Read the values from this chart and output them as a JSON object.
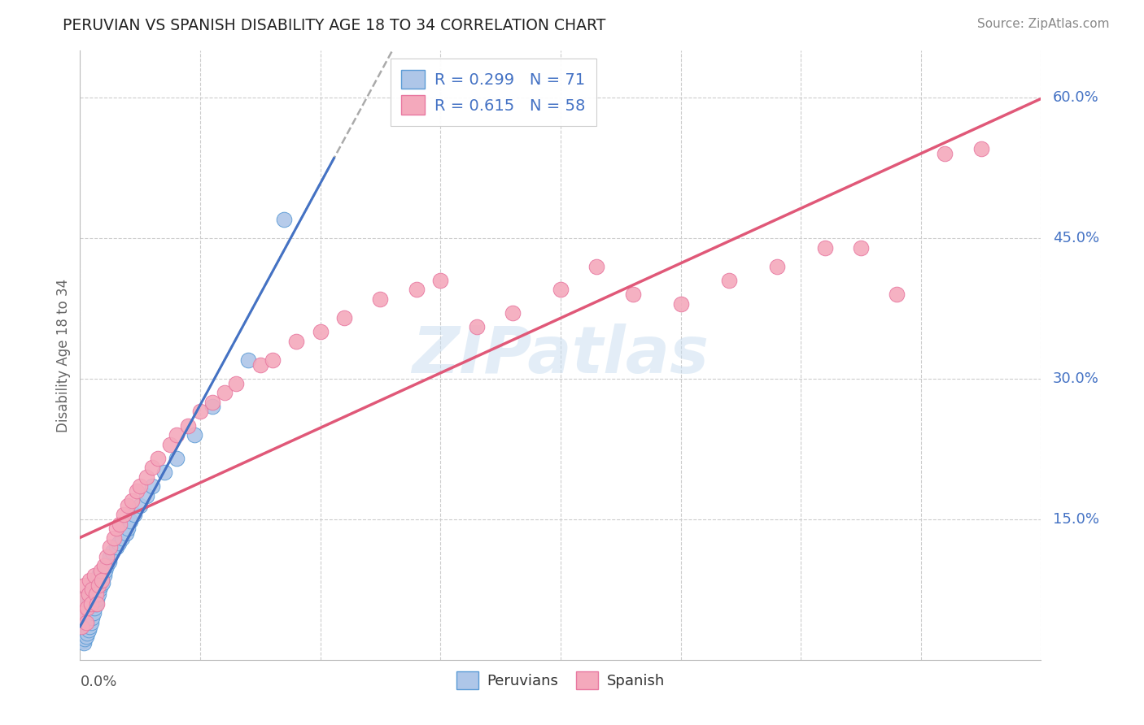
{
  "title": "PERUVIAN VS SPANISH DISABILITY AGE 18 TO 34 CORRELATION CHART",
  "source": "Source: ZipAtlas.com",
  "ylabel": "Disability Age 18 to 34",
  "xlim": [
    0.0,
    0.8
  ],
  "ylim": [
    0.0,
    0.65
  ],
  "peruvian_R": 0.299,
  "peruvian_N": 71,
  "spanish_R": 0.615,
  "spanish_N": 58,
  "peruvian_color": "#aec6e8",
  "spanish_color": "#f4a9bc",
  "peruvian_edge": "#5b9bd5",
  "spanish_edge": "#e878a0",
  "trend_peruvian_color": "#aaaaaa",
  "trend_spanish_color": "#e05878",
  "trend_peruvian_solid_color": "#4472c4",
  "legend_R_color": "#4472c4",
  "watermark": "ZIPatlas",
  "grid_color": "#cccccc",
  "right_label_color": "#4472c4",
  "ylabel_right_labels": [
    "60.0%",
    "45.0%",
    "30.0%",
    "15.0%"
  ],
  "ylabel_right_positions": [
    0.6,
    0.45,
    0.3,
    0.15
  ],
  "peruvian_x": [
    0.001,
    0.001,
    0.002,
    0.002,
    0.002,
    0.003,
    0.003,
    0.003,
    0.003,
    0.004,
    0.004,
    0.004,
    0.004,
    0.005,
    0.005,
    0.005,
    0.005,
    0.006,
    0.006,
    0.006,
    0.006,
    0.007,
    0.007,
    0.007,
    0.007,
    0.008,
    0.008,
    0.008,
    0.009,
    0.009,
    0.009,
    0.01,
    0.01,
    0.01,
    0.011,
    0.011,
    0.011,
    0.012,
    0.012,
    0.013,
    0.013,
    0.014,
    0.014,
    0.015,
    0.015,
    0.016,
    0.017,
    0.018,
    0.019,
    0.02,
    0.021,
    0.022,
    0.024,
    0.025,
    0.027,
    0.03,
    0.032,
    0.035,
    0.038,
    0.04,
    0.042,
    0.045,
    0.05,
    0.055,
    0.06,
    0.07,
    0.08,
    0.095,
    0.11,
    0.14,
    0.17
  ],
  "peruvian_y": [
    0.025,
    0.035,
    0.02,
    0.03,
    0.045,
    0.018,
    0.028,
    0.038,
    0.05,
    0.022,
    0.032,
    0.042,
    0.055,
    0.025,
    0.035,
    0.048,
    0.06,
    0.028,
    0.038,
    0.05,
    0.065,
    0.032,
    0.042,
    0.055,
    0.07,
    0.035,
    0.048,
    0.062,
    0.04,
    0.055,
    0.07,
    0.045,
    0.06,
    0.075,
    0.05,
    0.065,
    0.08,
    0.055,
    0.072,
    0.06,
    0.078,
    0.065,
    0.085,
    0.07,
    0.09,
    0.075,
    0.08,
    0.085,
    0.082,
    0.09,
    0.095,
    0.1,
    0.105,
    0.11,
    0.115,
    0.12,
    0.125,
    0.13,
    0.135,
    0.14,
    0.148,
    0.155,
    0.165,
    0.175,
    0.185,
    0.2,
    0.215,
    0.24,
    0.27,
    0.32,
    0.47
  ],
  "spanish_x": [
    0.001,
    0.002,
    0.003,
    0.004,
    0.005,
    0.006,
    0.007,
    0.008,
    0.009,
    0.01,
    0.012,
    0.013,
    0.014,
    0.015,
    0.017,
    0.018,
    0.02,
    0.022,
    0.025,
    0.028,
    0.03,
    0.033,
    0.036,
    0.04,
    0.043,
    0.047,
    0.05,
    0.055,
    0.06,
    0.065,
    0.075,
    0.08,
    0.09,
    0.1,
    0.11,
    0.12,
    0.13,
    0.15,
    0.16,
    0.18,
    0.2,
    0.22,
    0.25,
    0.28,
    0.3,
    0.33,
    0.36,
    0.4,
    0.43,
    0.46,
    0.5,
    0.54,
    0.58,
    0.62,
    0.65,
    0.68,
    0.72,
    0.75
  ],
  "spanish_y": [
    0.035,
    0.05,
    0.065,
    0.08,
    0.04,
    0.055,
    0.07,
    0.085,
    0.06,
    0.075,
    0.09,
    0.07,
    0.06,
    0.08,
    0.095,
    0.085,
    0.1,
    0.11,
    0.12,
    0.13,
    0.14,
    0.145,
    0.155,
    0.165,
    0.17,
    0.18,
    0.185,
    0.195,
    0.205,
    0.215,
    0.23,
    0.24,
    0.25,
    0.265,
    0.275,
    0.285,
    0.295,
    0.315,
    0.32,
    0.34,
    0.35,
    0.365,
    0.385,
    0.395,
    0.405,
    0.355,
    0.37,
    0.395,
    0.42,
    0.39,
    0.38,
    0.405,
    0.42,
    0.44,
    0.44,
    0.39,
    0.54,
    0.545
  ]
}
